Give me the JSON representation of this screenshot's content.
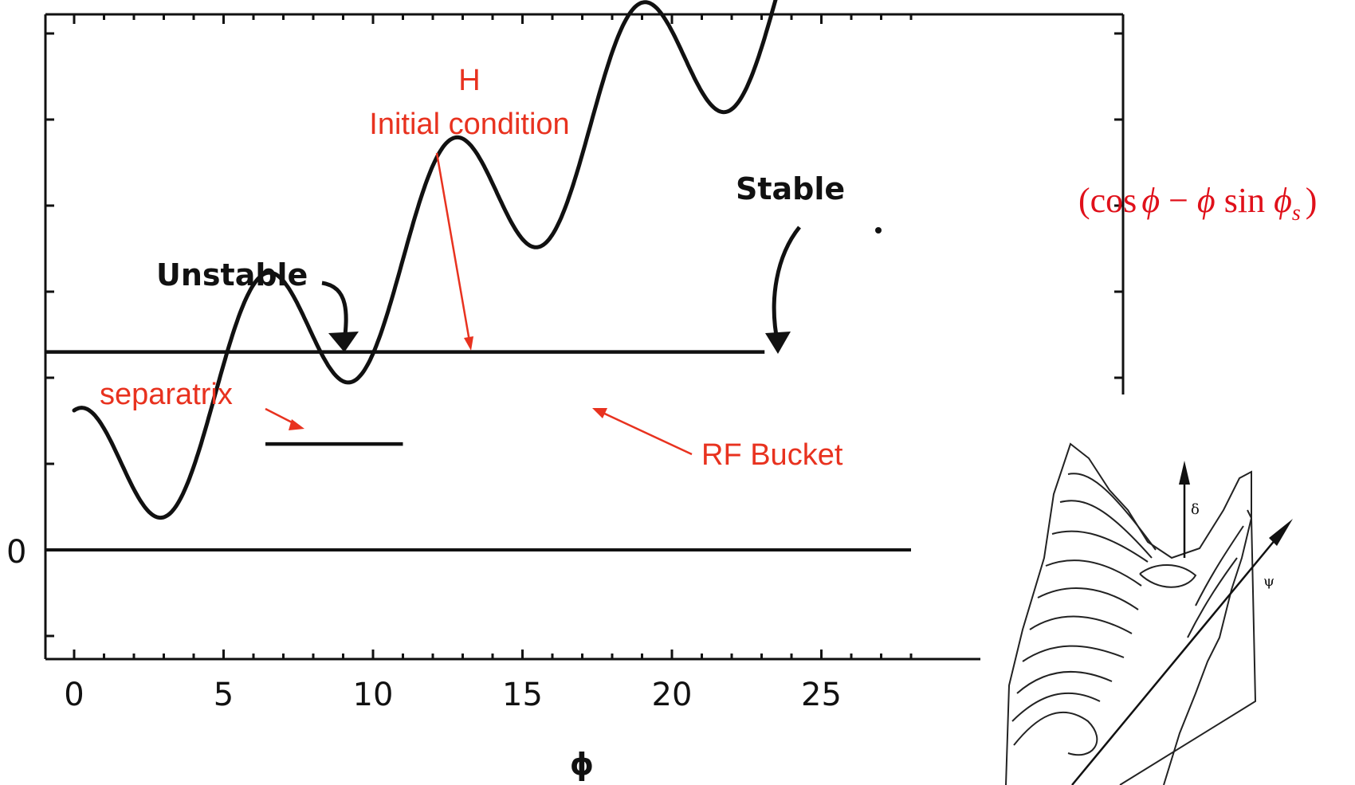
{
  "chart_data": {
    "type": "line",
    "xlabel": "ϕ",
    "x_ticks": [
      "0",
      "5",
      "10",
      "15",
      "20",
      "25"
    ],
    "y_tick_label": "0",
    "xlim": [
      -1,
      33
    ],
    "ylim": [
      -1.5,
      8.2
    ],
    "series": [
      {
        "name": "(cos ϕ − ϕ sin ϕs)",
        "formula": {
          "sin_phi_s": 0.25,
          "amplitude": 1.0,
          "offset": 0.62
        },
        "x_start": 0,
        "x_end": 33.4
      }
    ],
    "levels": [
      {
        "label": "Initial condition",
        "y": 2.3,
        "x_range": [
          -1,
          23.1
        ]
      },
      {
        "label": "separatrix",
        "y": 1.23,
        "x_range": [
          6.4,
          11.0
        ]
      },
      {
        "label": "zero",
        "y": 0,
        "x_range": [
          -1,
          28
        ]
      }
    ],
    "annotations": {
      "unstable": "Unstable",
      "stable": "Stable",
      "h_symbol": "H",
      "initial_condition": "Initial condition",
      "separatrix": "separatrix",
      "rf_bucket": "RF Bucket"
    },
    "formula_text": {
      "open": "(",
      "cos": "cos",
      "phi1": "ϕ",
      "minus": " − ",
      "phi2": "ϕ",
      "sin": " sin ",
      "phi3": "ϕ",
      "sub": "s",
      "close": ")"
    },
    "inset": {
      "delta": "δ",
      "psi": "ψ"
    },
    "colors": {
      "ink": "#111111",
      "accent": "#e8321f"
    }
  }
}
